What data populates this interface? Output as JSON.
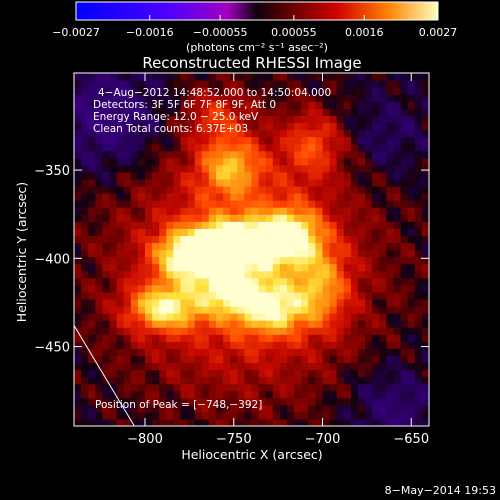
{
  "chart_data": {
    "type": "heatmap",
    "title": "Reconstructed RHESSI Image",
    "xlabel": "Heliocentric X (arcsec)",
    "ylabel": "Heliocentric Y (arcsec)",
    "xlim": [
      -840,
      -640
    ],
    "ylim": [
      -495,
      -295
    ],
    "x_ticks": [
      -800,
      -750,
      -700,
      -650
    ],
    "x_tick_labels": [
      "−800",
      "−750",
      "−700",
      "−650"
    ],
    "y_ticks": [
      -350,
      -400,
      -450
    ],
    "y_tick_labels": [
      "−350",
      "−400",
      "−450"
    ],
    "colorbar": {
      "range": [
        -0.0027,
        0.0027
      ],
      "ticks": [
        -0.0027,
        -0.0016,
        -0.00055,
        0.00055,
        0.0016,
        0.0027
      ],
      "tick_labels": [
        "−0.0027",
        "−0.0016",
        "−0.00055",
        "0.00055",
        "0.0016",
        "0.0027"
      ],
      "unit_label": "(photons cm⁻² s⁻¹ asec⁻²)"
    },
    "annotations": [
      "4−Aug−2012 14:48:52.000 to 14:50:04.000",
      "Detectors: 3F 5F 6F 7F 8F 9F, Att 0",
      "Energy Range: 12.0 − 25.0 keV",
      "Clean    Total counts: 6.37E+03"
    ],
    "peak_label": "Position of Peak = [−748,−392]",
    "peak": [
      -748,
      -392
    ],
    "sources": [
      {
        "x": -748,
        "y": -392,
        "amp": 1.0,
        "sx": 14,
        "sy": 9
      },
      {
        "x": -775,
        "y": -398,
        "amp": 0.78,
        "sx": 13,
        "sy": 10
      },
      {
        "x": -718,
        "y": -387,
        "amp": 0.72,
        "sx": 12,
        "sy": 11
      },
      {
        "x": -790,
        "y": -428,
        "amp": 0.7,
        "sx": 14,
        "sy": 9
      },
      {
        "x": -728,
        "y": -428,
        "amp": 0.6,
        "sx": 14,
        "sy": 10
      },
      {
        "x": -752,
        "y": -418,
        "amp": 0.52,
        "sx": 12,
        "sy": 9
      },
      {
        "x": -752,
        "y": -347,
        "amp": 0.55,
        "sx": 13,
        "sy": 12
      },
      {
        "x": -760,
        "y": -318,
        "amp": 0.32,
        "sx": 12,
        "sy": 10
      },
      {
        "x": -705,
        "y": -335,
        "amp": 0.4,
        "sx": 12,
        "sy": 13
      },
      {
        "x": -700,
        "y": -415,
        "amp": 0.4,
        "sx": 11,
        "sy": 16
      },
      {
        "x": -745,
        "y": -405,
        "amp": 0.55,
        "sx": 45,
        "sy": 45
      }
    ],
    "limb_line": {
      "from": [
        -840,
        -438
      ],
      "to": [
        -806,
        -495
      ]
    }
  },
  "footer_date": "8−May−2014 19:53"
}
